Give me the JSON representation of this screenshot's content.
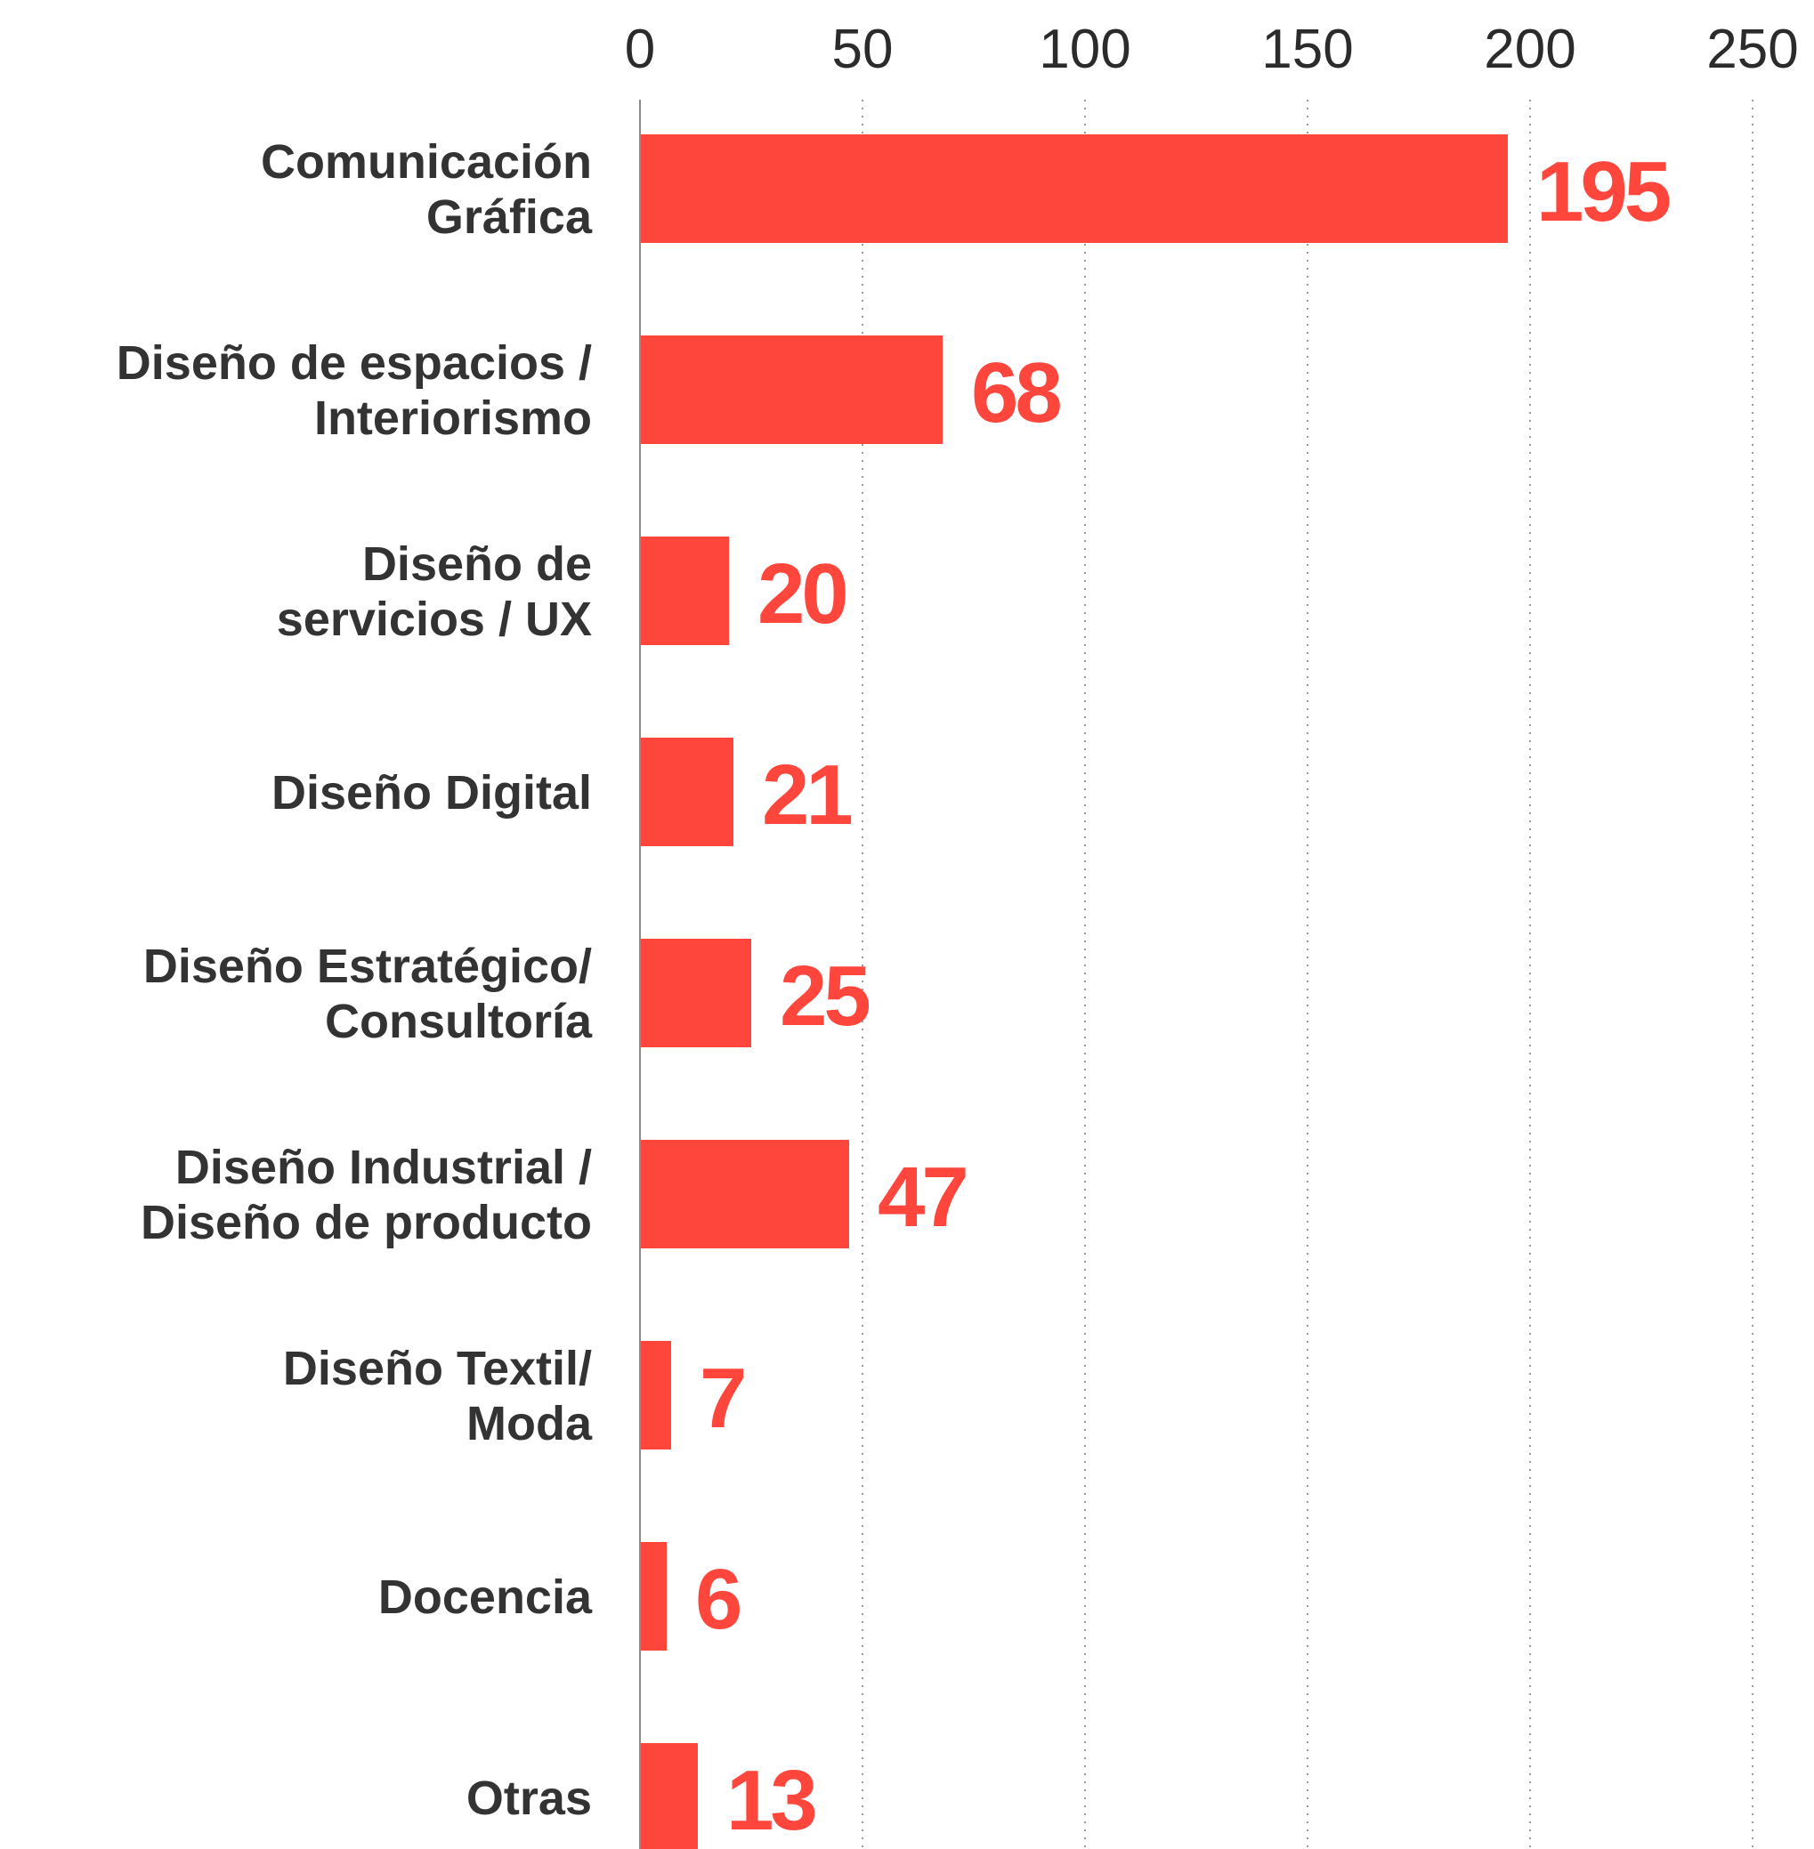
{
  "chart_data": {
    "type": "bar",
    "orientation": "horizontal",
    "categories": [
      [
        "Comunicación",
        "Gráfica"
      ],
      [
        "Diseño de espacios /",
        "Interiorismo"
      ],
      [
        "Diseño de",
        "servicios / UX"
      ],
      [
        "Diseño Digital"
      ],
      [
        "Diseño Estratégico/",
        "Consultoría"
      ],
      [
        "Diseño Industrial /",
        "Diseño de producto"
      ],
      [
        "Diseño Textil/",
        "Moda"
      ],
      [
        "Docencia"
      ],
      [
        "Otras"
      ]
    ],
    "values": [
      195,
      68,
      20,
      21,
      25,
      47,
      7,
      6,
      13
    ],
    "value_labels": [
      "195",
      "68",
      "20",
      "21",
      "25",
      "47",
      "7",
      "6",
      "13"
    ],
    "xlim": [
      0,
      250
    ],
    "x_ticks": [
      0,
      50,
      100,
      150,
      200,
      250
    ],
    "x_tick_labels": [
      "0",
      "50",
      "100",
      "150",
      "200",
      "250"
    ],
    "x_axis_position": "top",
    "grid": "vertical dotted",
    "legend": "none",
    "title": "",
    "xlabel": "",
    "ylabel": "",
    "colors": {
      "bar": "#ff463c",
      "value_label": "#ff463c",
      "category_label": "#333333",
      "tick_label": "#2b2b2b"
    }
  }
}
